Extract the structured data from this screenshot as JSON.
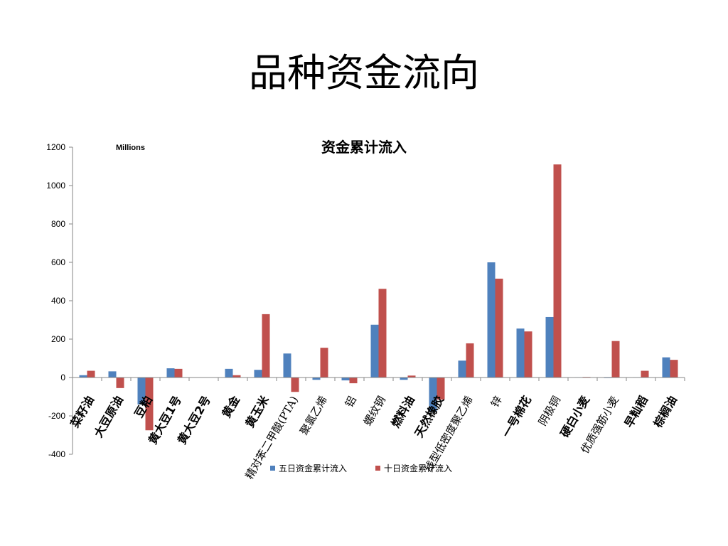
{
  "slide": {
    "title": "品种资金流向"
  },
  "chart_data": {
    "type": "bar",
    "title": "资金累计流入",
    "unit_label": "Millions",
    "ylim": [
      -400,
      1200
    ],
    "yticks": [
      -400,
      -200,
      0,
      200,
      400,
      600,
      800,
      1000,
      1200
    ],
    "grid": false,
    "legend_position": "bottom",
    "categories": [
      "菜籽油",
      "大豆原油",
      "豆粕",
      "黄大豆1号",
      "黄大豆2号",
      "黄金",
      "黄玉米",
      "精对苯二甲酸(PTA)",
      "聚氯乙烯",
      "铝",
      "螺纹钢",
      "燃料油",
      "天然橡胶",
      "线型低密度聚乙烯",
      "锌",
      "一号棉花",
      "阴极铜",
      "硬白小麦",
      "优质强筋小麦",
      "早籼稻",
      "棕榈油"
    ],
    "series": [
      {
        "name": "五日资金累计流入",
        "color": "#4F81BD",
        "values": [
          12,
          32,
          -140,
          48,
          0,
          45,
          40,
          125,
          -12,
          -15,
          275,
          -12,
          -180,
          88,
          600,
          255,
          315,
          2,
          -3,
          2,
          105
        ]
      },
      {
        "name": "十日资金累计流入",
        "color": "#C0504D",
        "values": [
          35,
          -55,
          -275,
          45,
          0,
          12,
          330,
          -75,
          155,
          -30,
          462,
          10,
          -115,
          178,
          515,
          240,
          1110,
          3,
          190,
          35,
          92
        ]
      }
    ]
  }
}
